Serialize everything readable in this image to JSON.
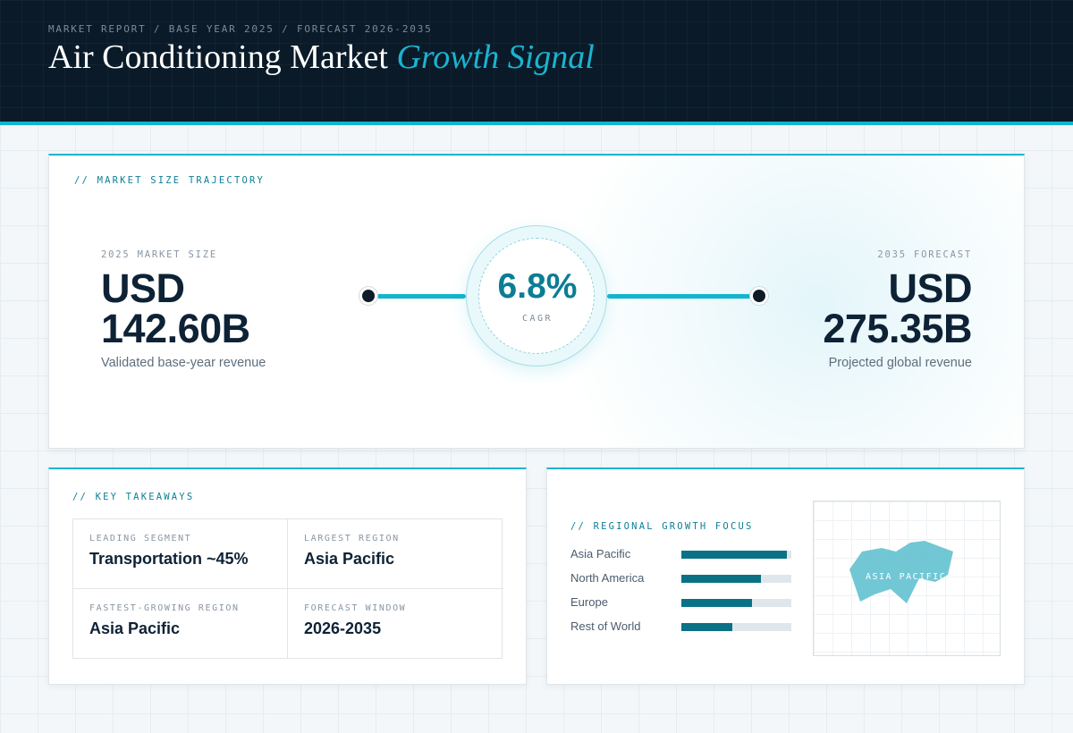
{
  "header": {
    "breadcrumb": "MARKET REPORT / BASE YEAR 2025 / FORECAST 2026-2035",
    "title_main": "Air Conditioning Market",
    "title_accent": "Growth Signal"
  },
  "trajectory": {
    "section_label": "// MARKET SIZE TRAJECTORY",
    "start": {
      "kicker": "2025 MARKET SIZE",
      "currency": "USD",
      "value": "142.60B",
      "caption": "Validated base-year revenue"
    },
    "cagr": {
      "value": "6.8%",
      "label": "CAGR"
    },
    "end": {
      "kicker": "2035 FORECAST",
      "currency": "USD",
      "value": "275.35B",
      "caption": "Projected global revenue"
    }
  },
  "takeaways": {
    "section_label": "// KEY TAKEAWAYS",
    "cells": [
      {
        "label": "LEADING SEGMENT",
        "value": "Transportation ~45%"
      },
      {
        "label": "LARGEST REGION",
        "value": "Asia Pacific"
      },
      {
        "label": "FASTEST-GROWING REGION",
        "value": "Asia Pacific"
      },
      {
        "label": "FORECAST WINDOW",
        "value": "2026-2035"
      }
    ]
  },
  "regional": {
    "section_label": "// REGIONAL GROWTH FOCUS",
    "bars": [
      {
        "name": "Asia Pacific",
        "level": 0.96
      },
      {
        "name": "North America",
        "level": 0.72
      },
      {
        "name": "Europe",
        "level": 0.64
      },
      {
        "name": "Rest of World",
        "level": 0.46
      }
    ],
    "map_label": "ASIA PACIFIC",
    "map_color": "#5ebfcf"
  },
  "colors": {
    "accent": "#11b5cf",
    "dark": "#0a1a28",
    "bar": "#0b7286"
  }
}
